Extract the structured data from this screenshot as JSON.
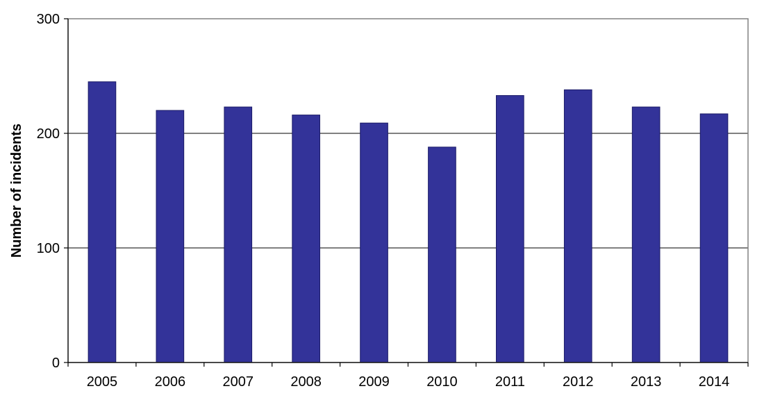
{
  "chart_data": {
    "type": "bar",
    "title": "",
    "xlabel": "",
    "ylabel": "Number of incidents",
    "categories": [
      "2005",
      "2006",
      "2007",
      "2008",
      "2009",
      "2010",
      "2011",
      "2012",
      "2013",
      "2014"
    ],
    "values": [
      245,
      220,
      223,
      216,
      209,
      188,
      233,
      238,
      223,
      217
    ],
    "ylim": [
      0,
      300
    ],
    "yticks": [
      0,
      100,
      200,
      300
    ],
    "grid": true,
    "bar_color": "#333399",
    "legend": "none"
  }
}
